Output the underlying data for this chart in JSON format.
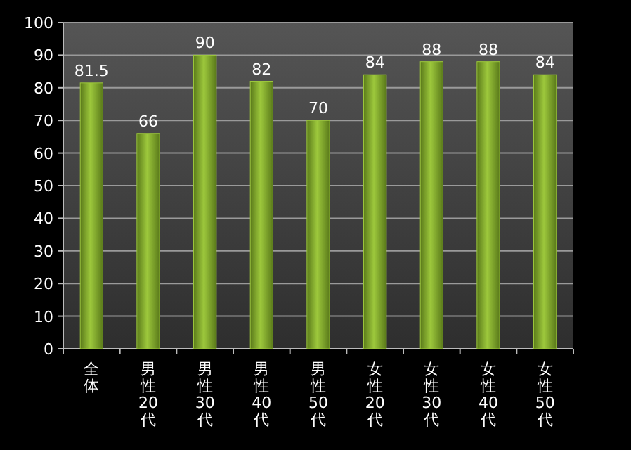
{
  "chart_data": {
    "type": "bar",
    "categories": [
      "全体",
      "男性20代",
      "男性30代",
      "男性40代",
      "男性50代",
      "女性20代",
      "女性30代",
      "女性40代",
      "女性50代"
    ],
    "values": [
      81.5,
      66,
      90,
      82,
      70,
      84,
      88,
      88,
      84
    ],
    "value_labels": [
      "81.5",
      "66",
      "90",
      "82",
      "70",
      "84",
      "88",
      "88",
      "84"
    ],
    "color": "#9dc83c",
    "ylim": [
      0,
      100
    ],
    "yticks": [
      0,
      10,
      20,
      30,
      40,
      50,
      60,
      70,
      80,
      90,
      100
    ],
    "grid": "y",
    "legend": false
  }
}
